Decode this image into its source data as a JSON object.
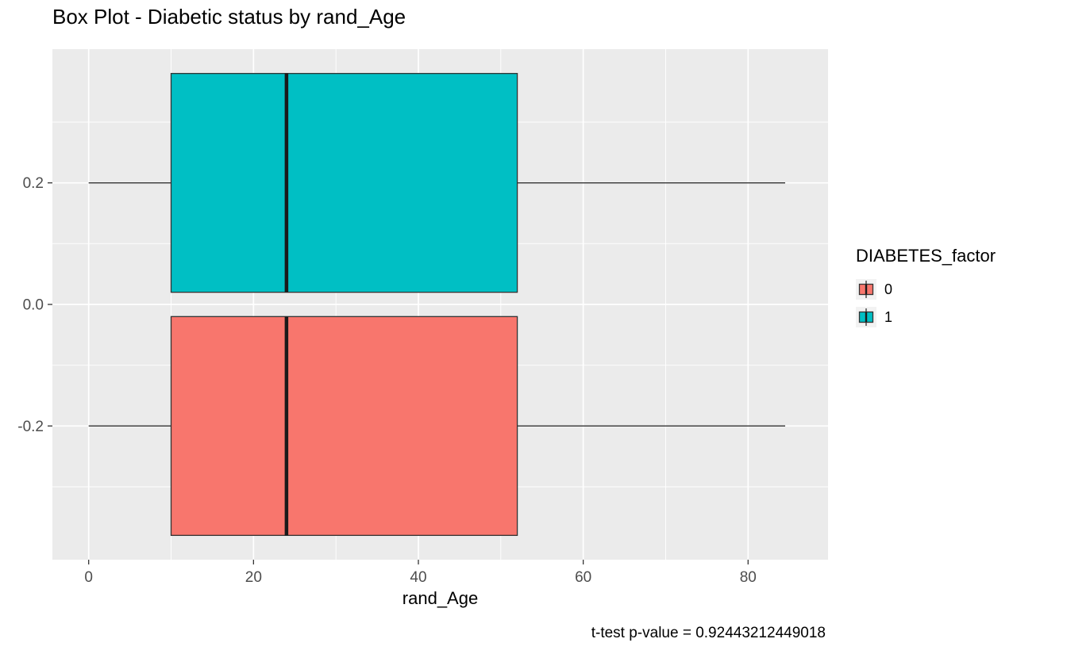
{
  "chart_data": {
    "type": "boxplot",
    "orientation": "horizontal",
    "title": "Box Plot - Diabetic status by rand_Age",
    "xlabel": "rand_Age",
    "ylabel": "",
    "caption": "t-test p-value = 0.92443212449018",
    "legend": {
      "title": "DIABETES_factor",
      "position": "right",
      "entries": [
        {
          "label": "0",
          "color": "#F8766D"
        },
        {
          "label": "1",
          "color": "#00BFC4"
        }
      ]
    },
    "x_domain": [
      -4.4,
      89.7
    ],
    "y_domain": [
      -0.42,
      0.42
    ],
    "x_ticks": [
      0,
      20,
      40,
      60,
      80
    ],
    "x_minor_ticks": [
      10,
      30,
      50,
      70
    ],
    "y_ticks": [
      0.2,
      0.0,
      -0.2
    ],
    "y_tick_labels": [
      "0.2",
      "0.0",
      "-0.2"
    ],
    "y_minor_ticks": [
      0.3,
      0.1,
      -0.1,
      -0.3
    ],
    "series": [
      {
        "name": "DIABETES_factor=1",
        "label": "1",
        "fill": "#00BFC4",
        "y_center": 0.2,
        "box_y_low": 0.02,
        "box_y_high": 0.38,
        "whisker_min": 0,
        "q1": 10,
        "median": 24,
        "q3": 52,
        "whisker_max": 84.5
      },
      {
        "name": "DIABETES_factor=0",
        "label": "0",
        "fill": "#F8766D",
        "y_center": -0.2,
        "box_y_low": -0.38,
        "box_y_high": -0.02,
        "whisker_min": 0,
        "q1": 10,
        "median": 24,
        "q3": 52,
        "whisker_max": 84.5
      }
    ],
    "panel_bg": "#EBEBEB",
    "grid_color": "#FFFFFF",
    "box_stroke": "#333333",
    "median_color": "#1A1A1A",
    "axis_tick_color": "#333333",
    "tick_label_color": "#4D4D4D",
    "legend_key_bg": "#F2F2F2"
  }
}
